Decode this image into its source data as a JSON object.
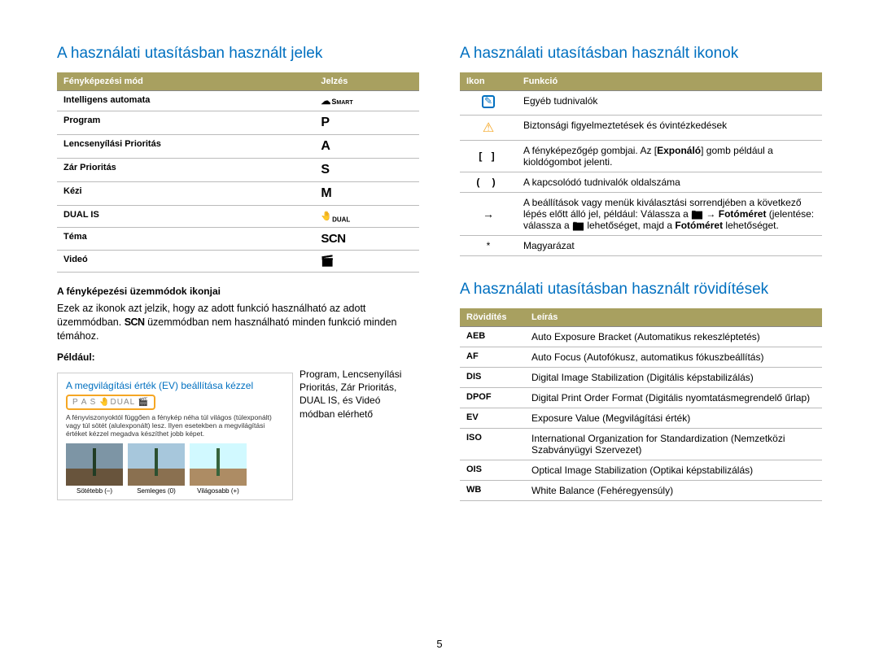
{
  "page_number": "5",
  "left": {
    "title": "A használati utasításban használt jelek",
    "table_headers": [
      "Fényképezési mód",
      "Jelzés"
    ],
    "rows": [
      {
        "mode": "Intelligens automata",
        "symbol_type": "smart"
      },
      {
        "mode": "Program",
        "symbol_text": "P"
      },
      {
        "mode": "Lencsenyílási Prioritás",
        "symbol_text": "A"
      },
      {
        "mode": "Zár Prioritás",
        "symbol_text": "S"
      },
      {
        "mode": "Kézi",
        "symbol_text": "M"
      },
      {
        "mode": "DUAL IS",
        "symbol_type": "dual"
      },
      {
        "mode": "Téma",
        "symbol_text": "SCN"
      },
      {
        "mode": "Videó",
        "symbol_type": "video"
      }
    ],
    "sub1": "A fényképezési üzemmódok ikonjai",
    "sub1_body_a": "Ezek az ikonok azt jelzik, hogy az adott funkció használható az adott üzemmódban. ",
    "sub1_body_b": " üzemmódban nem használható minden funkció minden témához.",
    "example_label": "Például:",
    "example_title": "A megvilágítási érték (EV) beállítása kézzel",
    "mode_strip": "P A S 🤚DUAL 🎬",
    "example_desc": "A fényviszonyoktól függően a fénykép néha túl világos (túlexponált) vagy túl sötét (alulexponált) lesz. Ilyen esetekben a megvilágítási értéket kézzel megadva készíthet jobb képet.",
    "thumbs": [
      {
        "label": "Sötétebb (–)"
      },
      {
        "label": "Semleges (0)"
      },
      {
        "label": "Világosabb (+)"
      }
    ],
    "side_text": "Program, Lencsenyílási Prioritás, Zár Prioritás, DUAL IS, és Videó módban elérhető"
  },
  "right_top": {
    "title": "A használati utasításban használt ikonok",
    "table_headers": [
      "Ikon",
      "Funkció"
    ],
    "rows": [
      {
        "icon": "note",
        "func": "Egyéb tudnivalók"
      },
      {
        "icon": "warn",
        "func": "Biztonsági figyelmeztetések és óvintézkedések"
      },
      {
        "icon": "bracket",
        "func_html": "A fényképezőgép gombjai. Az [<b>Exponáló</b>] gomb például a kioldógombot jelenti."
      },
      {
        "icon": "paren",
        "func": "A kapcsolódó tudnivalók oldalszáma"
      },
      {
        "icon": "arrow",
        "func_html": "A beállítások vagy menük kiválasztási sorrendjében a következő lépés előtt álló jel, például: Válassza a 📷 → <b>Fotóméret</b> (jelentése: válassza a 📷 lehetőséget, majd a <b>Fotóméret</b> lehetőséget."
      },
      {
        "icon": "star",
        "func": "Magyarázat"
      }
    ]
  },
  "right_bottom": {
    "title": "A használati utasításban használt rövidítések",
    "table_headers": [
      "Rövidítés",
      "Leírás"
    ],
    "rows": [
      {
        "abbr": "AEB",
        "desc": "Auto Exposure Bracket (Automatikus rekeszléptetés)"
      },
      {
        "abbr": "AF",
        "desc": "Auto Focus (Autofókusz, automatikus fókuszbeállítás)"
      },
      {
        "abbr": "DIS",
        "desc": "Digital Image Stabilization (Digitális képstabilizálás)"
      },
      {
        "abbr": "DPOF",
        "desc": "Digital Print Order Format (Digitális nyomtatásmegrendelő űrlap)"
      },
      {
        "abbr": "EV",
        "desc": "Exposure Value (Megvilágítási érték)"
      },
      {
        "abbr": "ISO",
        "desc": "International Organization for Standardization (Nemzetközi Szabványügyi Szervezet)"
      },
      {
        "abbr": "OIS",
        "desc": "Optical Image Stabilization (Optikai képstabilizálás)"
      },
      {
        "abbr": "WB",
        "desc": "White Balance (Fehéregyensúly)"
      }
    ]
  },
  "colors": {
    "heading": "#0070c0",
    "table_header_bg": "#a8a060",
    "highlight_border": "#f5a623"
  }
}
